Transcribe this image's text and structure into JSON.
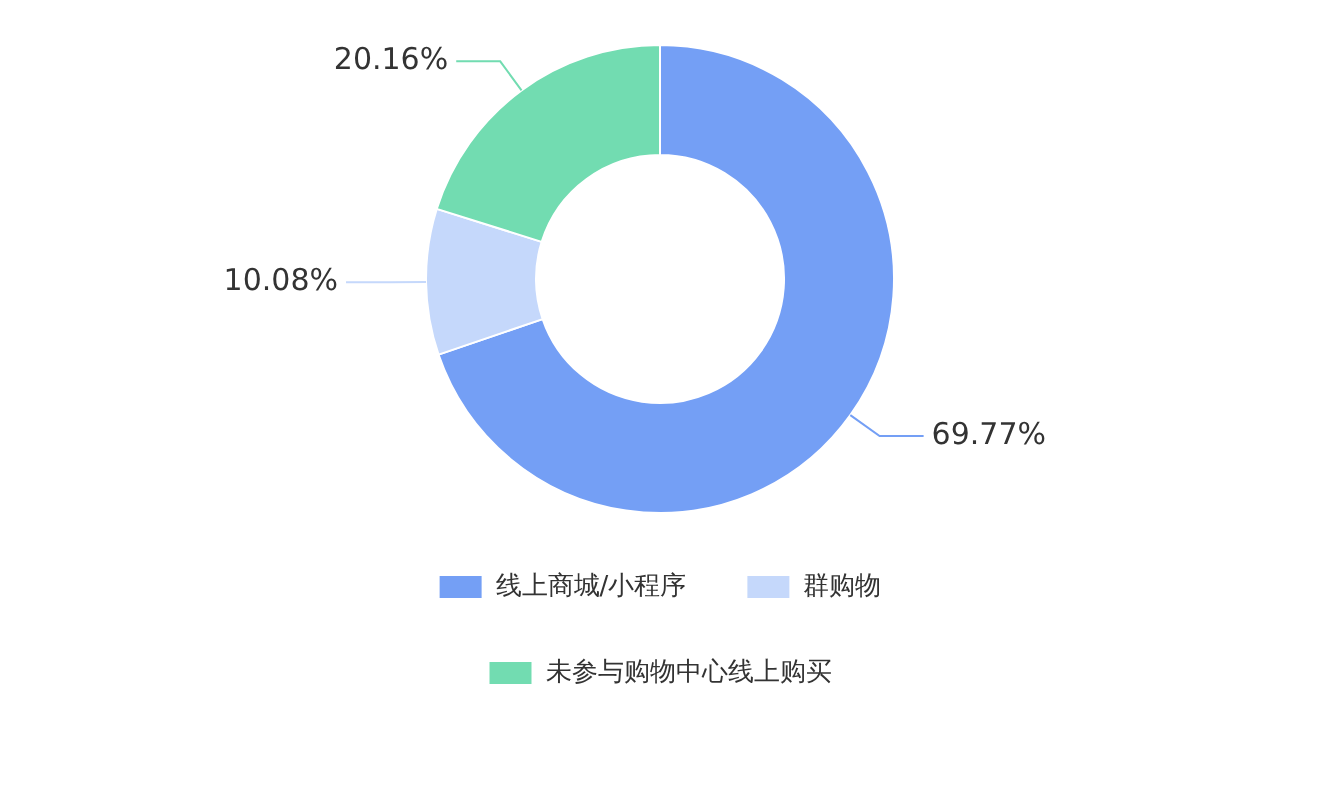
{
  "chart_data": {
    "type": "donut",
    "categories": [
      "线上商城/小程序",
      "群购物",
      "未参与购物中心线上购买"
    ],
    "values": [
      69.77,
      10.08,
      20.16
    ],
    "value_labels": [
      "69.77%",
      "10.08%",
      "20.16%"
    ],
    "colors": [
      "#749ff5",
      "#c5d8fb",
      "#72dcb1"
    ],
    "legend": "bottom"
  }
}
